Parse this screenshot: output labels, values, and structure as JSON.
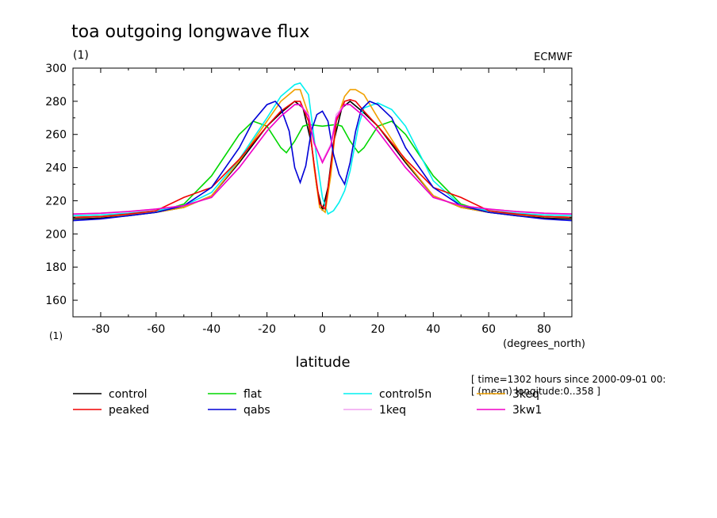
{
  "chart_data": {
    "type": "line",
    "title": "toa outgoing longwave flux",
    "units": "(1)",
    "source": "ECMWF",
    "ylabel_units": "(1)",
    "xlabel": "latitude",
    "xunits": "(degrees_north)",
    "xlim": [
      -90,
      90
    ],
    "ylim": [
      150,
      300
    ],
    "xticks": [
      -80,
      -60,
      -40,
      -20,
      0,
      20,
      40,
      60,
      80
    ],
    "yticks": [
      160,
      180,
      200,
      220,
      240,
      260,
      280,
      300
    ],
    "grid": false,
    "legend_position": "bottom",
    "info_lines": [
      "[ time=1302 hours since 2000-09-01 00:",
      "[ (mean) longitude:0..358 ]"
    ],
    "series": [
      {
        "name": "control",
        "color": "#000000",
        "x": [
          -90,
          -80,
          -70,
          -60,
          -50,
          -40,
          -30,
          -20,
          -15,
          -10,
          -7,
          -4,
          -2,
          0,
          2,
          4,
          7,
          10,
          15,
          20,
          30,
          40,
          50,
          60,
          70,
          80,
          90
        ],
        "y": [
          209,
          209.5,
          211,
          213,
          216,
          223,
          243,
          265,
          273,
          280,
          276,
          255,
          228,
          214,
          228,
          255,
          276,
          280,
          273,
          265,
          243,
          223,
          216,
          213,
          211,
          209.5,
          209
        ]
      },
      {
        "name": "flat",
        "color": "#00d700",
        "x": [
          -90,
          -80,
          -70,
          -60,
          -50,
          -40,
          -30,
          -25,
          -20,
          -15,
          -13,
          -10,
          -7,
          -5,
          0,
          5,
          7,
          10,
          13,
          15,
          20,
          25,
          30,
          40,
          50,
          60,
          70,
          80,
          90
        ],
        "y": [
          210,
          210.5,
          211.5,
          213,
          218,
          235,
          260,
          268,
          265,
          252,
          249,
          256,
          265,
          266,
          265,
          266,
          265,
          256,
          249,
          252,
          265,
          268,
          260,
          235,
          218,
          213,
          211.5,
          210.5,
          210
        ]
      },
      {
        "name": "control5n",
        "color": "#00f0f0",
        "x": [
          -90,
          -80,
          -70,
          -60,
          -50,
          -40,
          -30,
          -20,
          -15,
          -10,
          -8,
          -5,
          -2,
          0,
          2,
          4,
          6,
          8,
          10,
          13,
          15,
          20,
          25,
          30,
          40,
          50,
          60,
          70,
          80,
          90
        ],
        "y": [
          211,
          211.5,
          212.5,
          214,
          217,
          225,
          245,
          270,
          283,
          290,
          291,
          284,
          245,
          222,
          212,
          214,
          219,
          226,
          238,
          265,
          276,
          279,
          275,
          265,
          232,
          217,
          214,
          212.5,
          211.5,
          211
        ]
      },
      {
        "name": "3keq",
        "color": "#f0a000",
        "x": [
          -90,
          -80,
          -70,
          -60,
          -50,
          -40,
          -30,
          -20,
          -15,
          -10,
          -8,
          -5,
          -3,
          -1,
          1,
          3,
          5,
          8,
          10,
          12,
          15,
          20,
          30,
          40,
          50,
          60,
          70,
          80,
          90
        ],
        "y": [
          210,
          210.5,
          211.5,
          213,
          216,
          223,
          244,
          268,
          280,
          287,
          287,
          272,
          240,
          216,
          213,
          235,
          268,
          283,
          287,
          287,
          284,
          270,
          244,
          223,
          216,
          213,
          211.5,
          210.5,
          210
        ]
      },
      {
        "name": "peaked",
        "color": "#f00000",
        "x": [
          -90,
          -80,
          -70,
          -60,
          -50,
          -40,
          -30,
          -20,
          -15,
          -10,
          -8,
          -5,
          -3,
          -1,
          1,
          3,
          5,
          8,
          10,
          12,
          15,
          20,
          30,
          40,
          50,
          60,
          70,
          80,
          90
        ],
        "y": [
          210,
          210.5,
          212,
          214,
          222,
          228,
          245,
          265,
          274,
          280,
          280,
          268,
          242,
          218,
          215,
          240,
          268,
          280,
          281,
          280,
          274,
          265,
          245,
          228,
          222,
          214,
          212,
          210.5,
          210
        ]
      },
      {
        "name": "qabs",
        "color": "#0000d7",
        "x": [
          -90,
          -80,
          -70,
          -60,
          -50,
          -40,
          -30,
          -25,
          -20,
          -17,
          -15,
          -12,
          -10,
          -8,
          -6,
          -4,
          -2,
          0,
          2,
          4,
          6,
          8,
          10,
          12,
          14,
          17,
          20,
          25,
          30,
          40,
          50,
          60,
          70,
          80,
          90
        ],
        "y": [
          208,
          209,
          211,
          213,
          217,
          228,
          252,
          268,
          278,
          280,
          276,
          262,
          240,
          231,
          241,
          262,
          272,
          274,
          268,
          248,
          236,
          230,
          243,
          262,
          275,
          280,
          278,
          270,
          252,
          228,
          217,
          213,
          211,
          209,
          208
        ]
      },
      {
        "name": "1keq",
        "color": "#f0a0f0",
        "x": [
          -90,
          -80,
          -70,
          -60,
          -50,
          -40,
          -30,
          -20,
          -15,
          -10,
          -8,
          -5,
          -3,
          0,
          3,
          5,
          8,
          10,
          15,
          20,
          30,
          40,
          50,
          60,
          70,
          80,
          90
        ],
        "y": [
          212,
          212.5,
          213.5,
          215,
          217,
          222,
          240,
          262,
          271,
          278,
          278,
          272,
          254,
          244,
          254,
          272,
          278,
          278,
          271,
          262,
          240,
          222,
          217,
          215,
          213.5,
          212.5,
          212
        ]
      },
      {
        "name": "3kw1",
        "color": "#f000c8",
        "x": [
          -90,
          -80,
          -70,
          -60,
          -50,
          -40,
          -30,
          -20,
          -15,
          -10,
          -8,
          -5,
          -3,
          0,
          3,
          5,
          8,
          10,
          15,
          20,
          30,
          40,
          50,
          60,
          70,
          80,
          90
        ],
        "y": [
          212,
          212.5,
          213.5,
          215,
          217,
          222,
          240,
          262,
          271,
          278,
          278,
          271,
          255,
          243,
          253,
          270,
          278,
          278,
          271,
          262,
          240,
          222,
          217,
          215,
          213.5,
          212.5,
          212
        ]
      }
    ]
  }
}
